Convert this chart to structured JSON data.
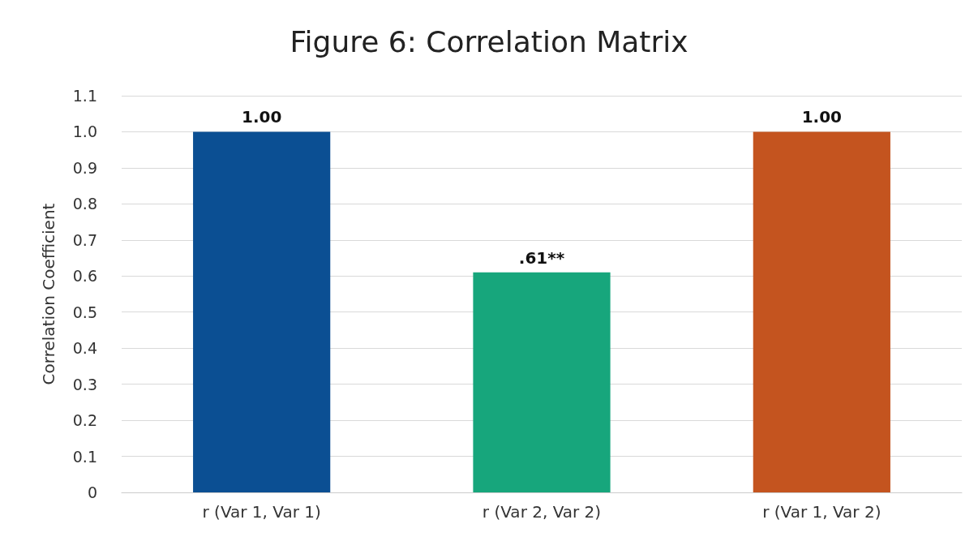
{
  "chart_data": {
    "type": "bar",
    "title": "Figure 6: Correlation Matrix",
    "ylabel": "Correlation Coefficient",
    "categories": [
      "r (Var 1, Var 1)",
      "r (Var 2, Var 2)",
      "r (Var 1, Var 2)"
    ],
    "values": [
      1.0,
      0.61,
      1.0
    ],
    "colors": [
      "#0b4f93",
      "#17a67c",
      "#c4541f"
    ],
    "value_labels": [
      "1.00",
      ".61**",
      "1.00"
    ],
    "ylim": [
      0,
      1.1
    ],
    "yticks": [
      0,
      0.1,
      0.2,
      0.3,
      0.4,
      0.5,
      0.6,
      0.7,
      0.8,
      0.9,
      {
        "value": 1,
        "label": "1.0"
      },
      1.1
    ],
    "grid": "y"
  }
}
